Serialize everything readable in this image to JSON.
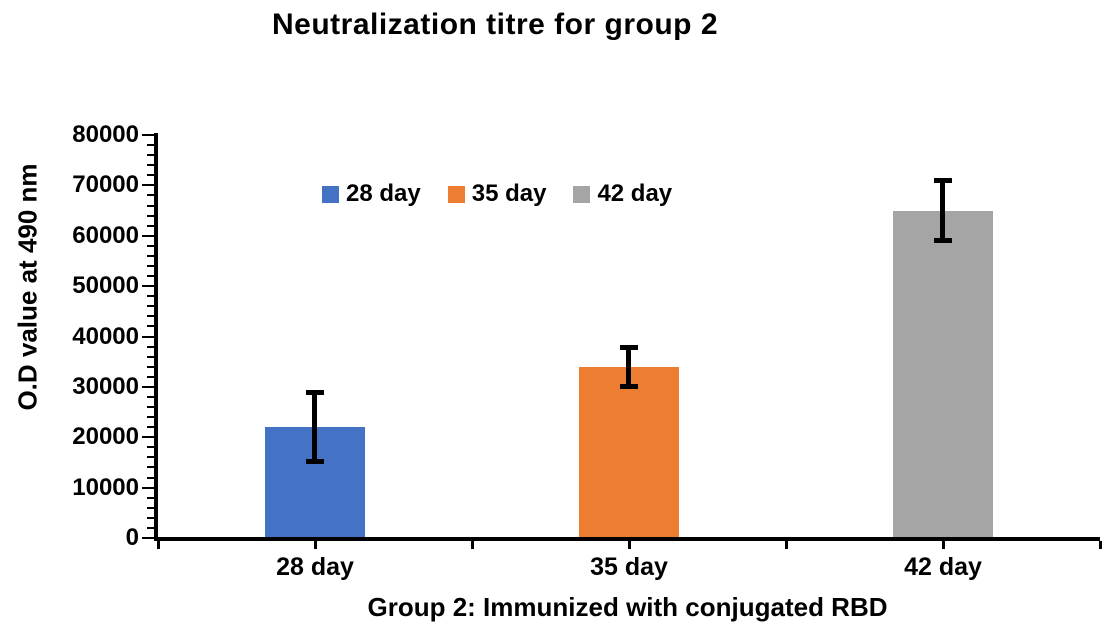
{
  "title": "Neutralization titre for group 2",
  "chart_data": {
    "type": "bar",
    "title": "Neutralization titre for group 2",
    "xlabel": "Group 2: Immunized with conjugated RBD",
    "ylabel": "O.D value at 490 nm",
    "categories": [
      "28 day",
      "35 day",
      "42 day"
    ],
    "values": [
      22000,
      34000,
      65000
    ],
    "error_bars": [
      7000,
      4000,
      6000
    ],
    "ylim": [
      0,
      80000
    ],
    "y_major_step": 10000,
    "y_minor_step": 2000,
    "grid": false,
    "legend_position": "top-inside",
    "legend": [
      {
        "label": "28 day",
        "color": "#4472C4"
      },
      {
        "label": "35 day",
        "color": "#ED7D31"
      },
      {
        "label": "42 day",
        "color": "#A5A5A5"
      }
    ],
    "bar_colors": [
      "#4472C4",
      "#ED7D31",
      "#A5A5A5"
    ],
    "error_color": "#000000",
    "axis_color": "#000000"
  }
}
